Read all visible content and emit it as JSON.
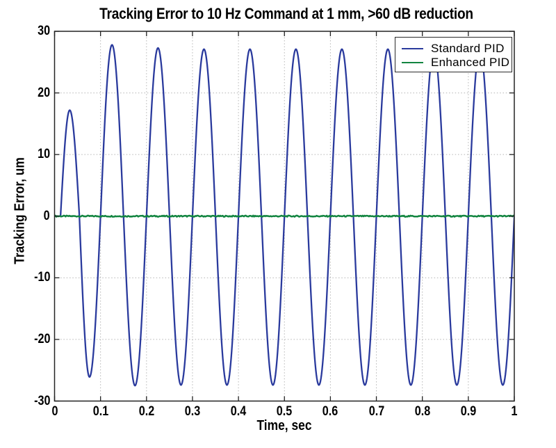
{
  "chart_data": {
    "type": "line",
    "title": "Tracking Error to 10 Hz Command at 1 mm, >60 dB reduction",
    "xlabel": "Time, sec",
    "ylabel": "Tracking Error, um",
    "xlim": [
      0,
      1
    ],
    "ylim": [
      -30,
      30
    ],
    "xticks": {
      "values": [
        0,
        0.1,
        0.2,
        0.3,
        0.4,
        0.5,
        0.6,
        0.7,
        0.8,
        0.9,
        1
      ],
      "labels": [
        "0",
        "0.1",
        "0.2",
        "0.3",
        "0.4",
        "0.5",
        "0.6",
        "0.7",
        "0.8",
        "0.9",
        "1"
      ]
    },
    "yticks": {
      "values": [
        -30,
        -20,
        -10,
        0,
        10,
        20,
        30
      ],
      "labels": [
        "-30",
        "-20",
        "-10",
        "0",
        "10",
        "20",
        "30"
      ]
    },
    "grid": true,
    "grid_style": "dotted",
    "axis_color": "#222222",
    "grid_color": "#b4b4b4",
    "background_color": "#ffffff",
    "legend": {
      "position": "top-right",
      "items": [
        {
          "label": "Standard PID",
          "color": "#2A3A9D"
        },
        {
          "label": "Enhanced PID",
          "color": "#128540"
        }
      ]
    },
    "series": [
      {
        "name": "Standard PID",
        "color": "#2A3A9D",
        "line_width": 2.3,
        "model": "piecewise-sine",
        "frequency_hz": 10,
        "steady_amplitude_um": 27.2,
        "keypoints": [
          [
            0,
            0
          ],
          [
            0.013,
            0
          ],
          [
            0.033,
            17.2
          ],
          [
            0.054,
            0
          ],
          [
            0.076,
            -26.1
          ],
          [
            0.1,
            0
          ],
          [
            0.125,
            27.8
          ],
          [
            0.15,
            0
          ],
          [
            0.175,
            -27.5
          ],
          [
            0.2,
            0
          ],
          [
            0.225,
            27.3
          ],
          [
            0.25,
            0
          ],
          [
            0.275,
            -27.4
          ],
          [
            0.3,
            0
          ],
          [
            0.325,
            27.1
          ],
          [
            0.35,
            0
          ],
          [
            0.375,
            -27.4
          ],
          [
            0.4,
            0
          ],
          [
            0.425,
            27.1
          ],
          [
            0.45,
            0
          ],
          [
            0.475,
            -27.4
          ],
          [
            0.5,
            0
          ],
          [
            0.525,
            27.1
          ],
          [
            0.55,
            0
          ],
          [
            0.575,
            -27.4
          ],
          [
            0.6,
            0
          ],
          [
            0.625,
            27.1
          ],
          [
            0.65,
            0
          ],
          [
            0.675,
            -27.4
          ],
          [
            0.7,
            0
          ],
          [
            0.725,
            27.1
          ],
          [
            0.75,
            0
          ],
          [
            0.775,
            -27.4
          ],
          [
            0.8,
            0
          ],
          [
            0.825,
            27.1
          ],
          [
            0.85,
            0
          ],
          [
            0.875,
            -27.4
          ],
          [
            0.9,
            0
          ],
          [
            0.925,
            27.1
          ],
          [
            0.95,
            0
          ],
          [
            0.975,
            -27.4
          ],
          [
            1.0,
            0
          ]
        ]
      },
      {
        "name": "Enhanced PID",
        "color": "#128540",
        "line_width": 2.5,
        "model": "flat",
        "value": 0,
        "noise_amplitude_um": 0.1
      }
    ]
  }
}
